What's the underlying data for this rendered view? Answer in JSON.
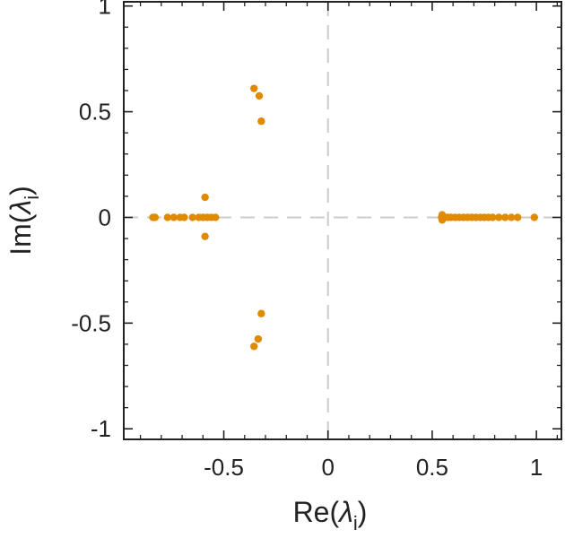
{
  "chart_data": {
    "type": "scatter",
    "title": "",
    "xlabel": {
      "main": "Re(",
      "symbol": "λ",
      "sub": "i",
      "close": ")"
    },
    "ylabel": {
      "main": "Im(",
      "symbol": "λ",
      "sub": "i",
      "close": ")"
    },
    "xlim": [
      -0.98,
      1.12
    ],
    "ylim": [
      -1.05,
      1.02
    ],
    "x_major_ticks": [
      -0.5,
      0,
      0.5,
      1
    ],
    "x_tick_labels": [
      "-0.5",
      "0",
      "0.5",
      "1"
    ],
    "x_minor_ticks": [
      -0.9,
      -0.8,
      -0.7,
      -0.6,
      -0.4,
      -0.3,
      -0.2,
      -0.1,
      0.1,
      0.2,
      0.3,
      0.4,
      0.6,
      0.7,
      0.8,
      0.9,
      1.1
    ],
    "y_major_ticks": [
      -1,
      -0.5,
      0,
      0.5,
      1
    ],
    "y_tick_labels": [
      "-1",
      "-0.5",
      "0",
      "0.5",
      "1"
    ],
    "y_minor_ticks": [
      -0.9,
      -0.8,
      -0.7,
      -0.6,
      -0.4,
      -0.3,
      -0.2,
      -0.1,
      0.1,
      0.2,
      0.3,
      0.4,
      0.6,
      0.7,
      0.8,
      0.9
    ],
    "reference_lines": {
      "x": 0,
      "y": 0,
      "style": "dashed",
      "color": "#cccccc"
    },
    "grid": false,
    "legend": "none",
    "marker_color": "#e08a00",
    "points": [
      {
        "x": -0.84,
        "y": 0.0
      },
      {
        "x": -0.83,
        "y": 0.0
      },
      {
        "x": -0.77,
        "y": 0.0
      },
      {
        "x": -0.74,
        "y": 0.0
      },
      {
        "x": -0.71,
        "y": 0.0
      },
      {
        "x": -0.69,
        "y": 0.0
      },
      {
        "x": -0.65,
        "y": 0.0
      },
      {
        "x": -0.62,
        "y": 0.0
      },
      {
        "x": -0.6,
        "y": 0.0
      },
      {
        "x": -0.58,
        "y": 0.0
      },
      {
        "x": -0.56,
        "y": 0.0
      },
      {
        "x": -0.54,
        "y": 0.0
      },
      {
        "x": -0.59,
        "y": 0.095
      },
      {
        "x": -0.59,
        "y": -0.09
      },
      {
        "x": -0.355,
        "y": 0.61
      },
      {
        "x": -0.33,
        "y": 0.575
      },
      {
        "x": -0.32,
        "y": 0.455
      },
      {
        "x": -0.32,
        "y": -0.455
      },
      {
        "x": -0.335,
        "y": -0.575
      },
      {
        "x": -0.355,
        "y": -0.61
      },
      {
        "x": 0.545,
        "y": 0.0
      },
      {
        "x": 0.55,
        "y": 0.0
      },
      {
        "x": 0.56,
        "y": 0.0
      },
      {
        "x": 0.575,
        "y": 0.0
      },
      {
        "x": 0.59,
        "y": 0.0
      },
      {
        "x": 0.61,
        "y": 0.0
      },
      {
        "x": 0.63,
        "y": 0.0
      },
      {
        "x": 0.65,
        "y": 0.0
      },
      {
        "x": 0.67,
        "y": 0.0
      },
      {
        "x": 0.69,
        "y": 0.0
      },
      {
        "x": 0.71,
        "y": 0.0
      },
      {
        "x": 0.73,
        "y": 0.0
      },
      {
        "x": 0.75,
        "y": 0.0
      },
      {
        "x": 0.77,
        "y": 0.0
      },
      {
        "x": 0.79,
        "y": 0.0
      },
      {
        "x": 0.82,
        "y": 0.0
      },
      {
        "x": 0.85,
        "y": 0.0
      },
      {
        "x": 0.88,
        "y": 0.0
      },
      {
        "x": 0.91,
        "y": 0.0
      },
      {
        "x": 0.99,
        "y": 0.0
      },
      {
        "x": 0.548,
        "y": 0.012
      },
      {
        "x": 0.548,
        "y": -0.012
      }
    ]
  }
}
